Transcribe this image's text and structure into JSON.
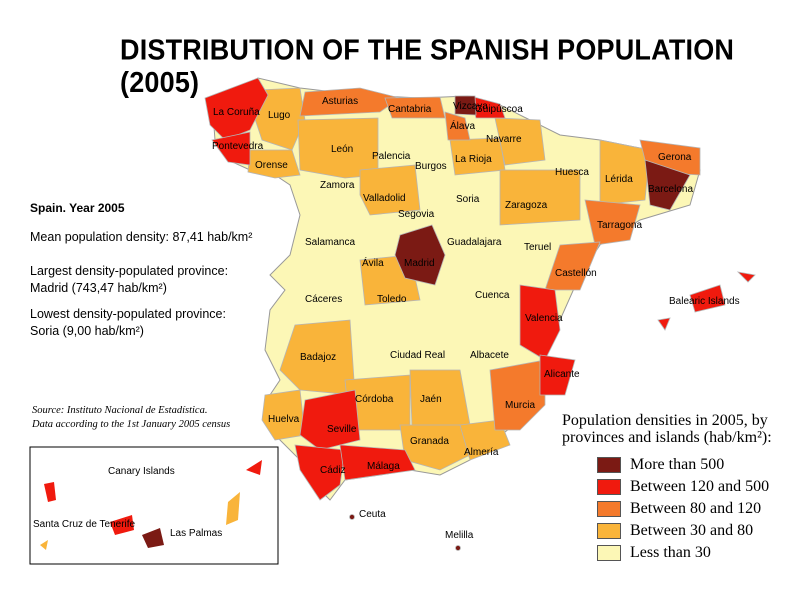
{
  "title": "DISTRIBUTION OF THE SPANISH POPULATION (2005)",
  "info": {
    "heading": "Spain. Year 2005",
    "mean": "Mean population density: 87,41 hab/km²",
    "largest_line1": "Largest density-populated province:",
    "largest_line2": "Madrid (743,47 hab/km²)",
    "lowest_line1": "Lowest density-populated province:",
    "lowest_line2": "Soria (9,00 hab/km²)"
  },
  "source": {
    "line1": "Source: Instituto Nacional de Estadística.",
    "line2": "Data according to the 1st January 2005 census"
  },
  "legend": {
    "title_line1": "Population densities in 2005, by",
    "title_line2": "provinces and islands (hab/km²):",
    "items": [
      {
        "label": "More than 500",
        "color": "#7b1a14"
      },
      {
        "label": "Between 120 and 500",
        "color": "#f01a0e"
      },
      {
        "label": "Between 80 and 120",
        "color": "#f47a2c"
      },
      {
        "label": "Between 30 and 80",
        "color": "#f9b43a"
      },
      {
        "label": "Less than 30",
        "color": "#fcf7b6"
      }
    ]
  },
  "map": {
    "land_color": "#fcf7b6",
    "border_color": "#b5b5b5",
    "province_labels": [
      "La Coruña",
      "Lugo",
      "Asturias",
      "Cantabria",
      "Vizcaya",
      "Guipúscoa",
      "Álava",
      "Navarre",
      "Pontevedra",
      "Orense",
      "León",
      "Palencia",
      "Burgos",
      "La Rioja",
      "Huesca",
      "Gerona",
      "Lérida",
      "Barcelona",
      "Zamora",
      "Valladolid",
      "Soria",
      "Zaragoza",
      "Tarragona",
      "Segovia",
      "Salamanca",
      "Ávila",
      "Madrid",
      "Guadalajara",
      "Teruel",
      "Castellón",
      "Cáceres",
      "Toledo",
      "Cuenca",
      "Valencia",
      "Balearic Islands",
      "Badajoz",
      "Ciudad Real",
      "Albacete",
      "Alicante",
      "Córdoba",
      "Jaén",
      "Murcia",
      "Huelva",
      "Seville",
      "Granada",
      "Almería",
      "Cádiz",
      "Málaga",
      "Ceuta",
      "Melilla"
    ],
    "canary_inset": {
      "title": "Canary Islands",
      "santa_cruz": "Santa Cruz de Tenerife",
      "las_palmas": "Las Palmas"
    }
  }
}
